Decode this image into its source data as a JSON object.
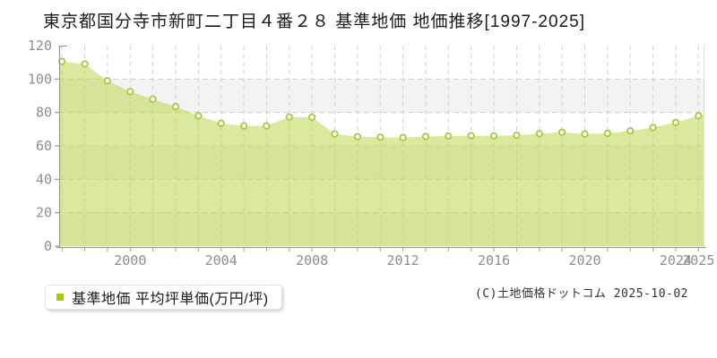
{
  "title": "東京都国分寺市新町二丁目４番２８ 基準地価 地価推移[1997-2025]",
  "legend": {
    "label": "基準地価 平均坪単価(万円/坪)",
    "marker_color": "#a4c71c"
  },
  "copyright": "(C)土地価格ドットコム 2025-10-02",
  "chart_data": {
    "type": "area",
    "title": "東京都国分寺市新町二丁目４番２８ 基準地価 地価推移[1997-2025]",
    "x": [
      1997,
      1998,
      1999,
      2000,
      2001,
      2002,
      2003,
      2004,
      2005,
      2006,
      2007,
      2008,
      2009,
      2010,
      2011,
      2012,
      2013,
      2014,
      2015,
      2016,
      2017,
      2018,
      2019,
      2020,
      2021,
      2022,
      2023,
      2024,
      2025
    ],
    "series": [
      {
        "name": "基準地価 平均坪単価(万円/坪)",
        "values": [
          110.5,
          109,
          99,
          92.5,
          88,
          83.5,
          78,
          73.5,
          72,
          72,
          77.3,
          77.2,
          67.2,
          65.5,
          65.2,
          65,
          65.6,
          65.9,
          66.1,
          66,
          66.4,
          67.3,
          68.2,
          67.1,
          67.5,
          69,
          71,
          74,
          78
        ]
      }
    ],
    "xlabel": "",
    "ylabel": "",
    "ylim": [
      0,
      120
    ],
    "yticks": [
      0,
      20,
      40,
      60,
      80,
      100,
      120
    ],
    "xtick_labels": [
      "2000",
      "2004",
      "2008",
      "2012",
      "2016",
      "2020",
      "2024",
      "2025"
    ],
    "xtick_years": [
      2000,
      2004,
      2008,
      2012,
      2016,
      2020,
      2024,
      2025
    ],
    "grid": true,
    "gray_bands": [
      [
        80,
        100
      ],
      [
        40,
        60
      ],
      [
        0,
        20
      ]
    ],
    "legend_position": "bottom-left",
    "colors": {
      "area_fill": "rgba(190,215,79,0.55)",
      "line": "#b0d355",
      "marker_fill": "#ffffff",
      "marker_stroke": "#a6c93d",
      "grid": "#d2d2d2",
      "band": "#f3f3f3",
      "axis": "#999999",
      "tick_text": "#8f8f8f"
    }
  }
}
